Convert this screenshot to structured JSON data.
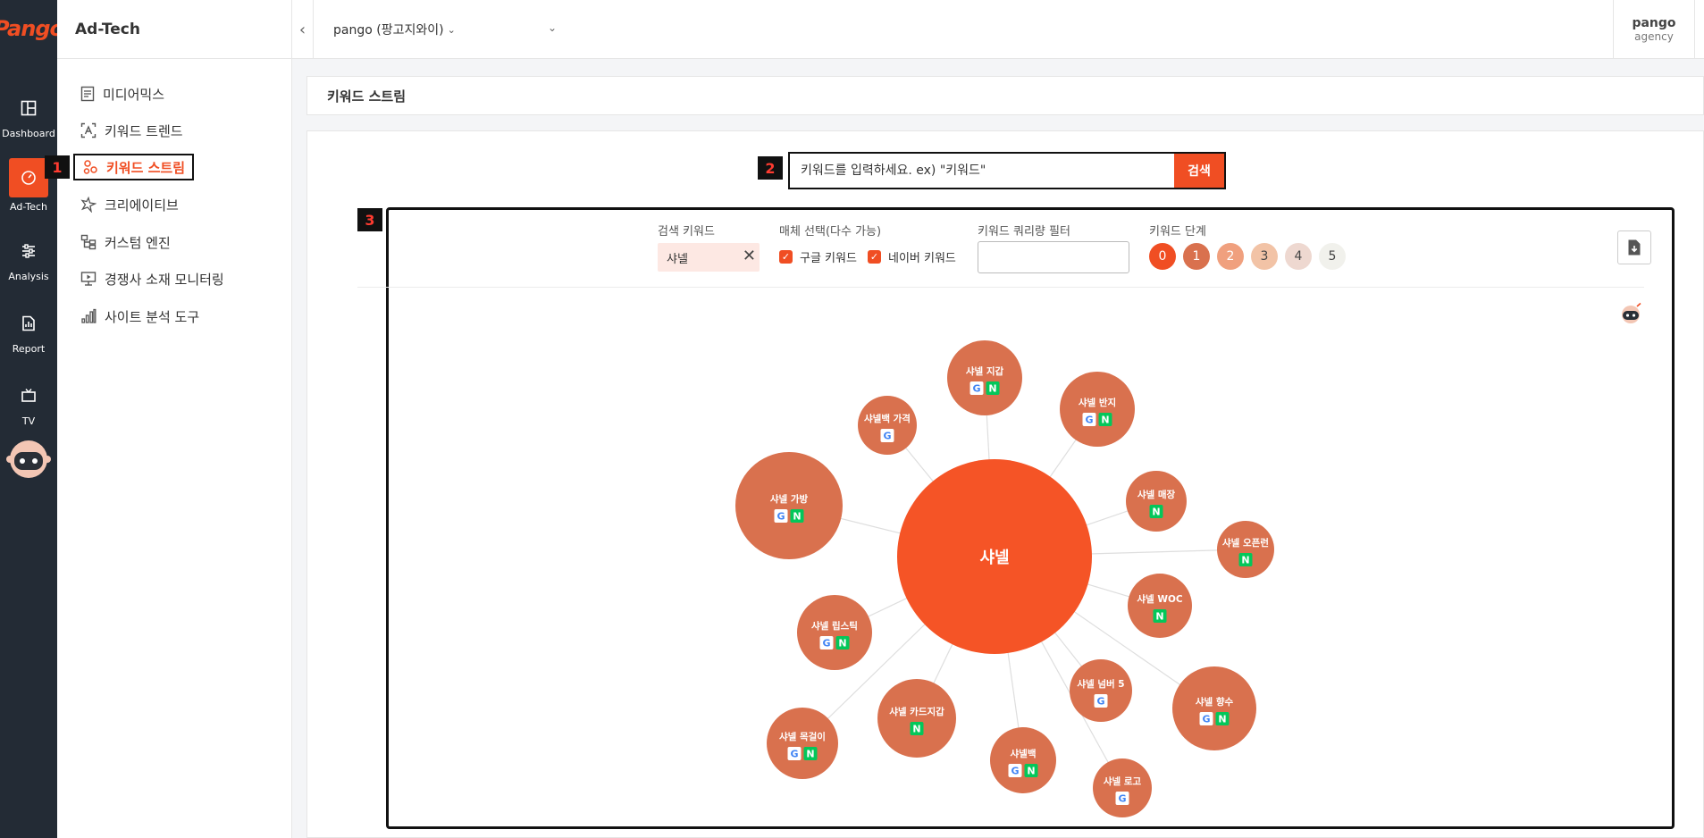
{
  "rail": {
    "logo": "Pango",
    "items": [
      {
        "label": "Dashboard",
        "icon": "dashboard-icon"
      },
      {
        "label": "Ad-Tech",
        "icon": "gauge-icon"
      },
      {
        "label": "Analysis",
        "icon": "sliders-icon"
      },
      {
        "label": "Report",
        "icon": "report-icon"
      },
      {
        "label": "TV",
        "icon": "tv-icon"
      }
    ]
  },
  "menu": {
    "title": "Ad-Tech",
    "items": [
      {
        "label": "미디어믹스",
        "icon": "document-icon"
      },
      {
        "label": "키워드 트렌드",
        "icon": "text-scan-icon"
      },
      {
        "label": "키워드 스트림",
        "icon": "stream-icon"
      },
      {
        "label": "크리에이티브",
        "icon": "sparkle-icon"
      },
      {
        "label": "커스텀 엔진",
        "icon": "tree-icon"
      },
      {
        "label": "경쟁사 소재 모니터링",
        "icon": "monitor-icon"
      },
      {
        "label": "사이트 분석 도구",
        "icon": "bar-chart-icon"
      }
    ]
  },
  "topbar": {
    "account": "pango (팡고지와이)",
    "user_name": "pango",
    "user_role": "agency"
  },
  "page_title": "키워드 스트림",
  "search": {
    "placeholder": "키워드를 입력하세요. ex) \"키워드\"",
    "button": "검색"
  },
  "filters": {
    "keyword_label": "검색 키워드",
    "keyword_value": "샤넬",
    "media_label": "매체 선택(다수 가능)",
    "media_options": [
      "구글 키워드",
      "네이버 키워드"
    ],
    "query_filter_label": "키워드 쿼리량 필터",
    "level_label": "키워드 단계",
    "levels": [
      "0",
      "1",
      "2",
      "3",
      "4",
      "5"
    ]
  },
  "annotations": [
    "1",
    "2",
    "3"
  ],
  "graph": {
    "center": "샤넬",
    "nodes": [
      {
        "label": "샤넬 지갑",
        "badges": [
          "G",
          "N"
        ]
      },
      {
        "label": "샤넬백 가격",
        "badges": [
          "G"
        ]
      },
      {
        "label": "샤넬 반지",
        "badges": [
          "G",
          "N"
        ]
      },
      {
        "label": "샤넬 가방",
        "badges": [
          "G",
          "N"
        ]
      },
      {
        "label": "샤넬 매장",
        "badges": [
          "N"
        ]
      },
      {
        "label": "샤넬 오픈런",
        "badges": [
          "N"
        ]
      },
      {
        "label": "샤넬 WOC",
        "badges": [
          "N"
        ]
      },
      {
        "label": "샤넬 립스틱",
        "badges": [
          "G",
          "N"
        ]
      },
      {
        "label": "샤넬 넘버 5",
        "badges": [
          "G"
        ]
      },
      {
        "label": "샤넬 향수",
        "badges": [
          "G",
          "N"
        ]
      },
      {
        "label": "샤넬 카드지갑",
        "badges": [
          "N"
        ]
      },
      {
        "label": "샤넬 목걸이",
        "badges": [
          "G",
          "N"
        ]
      },
      {
        "label": "샤넬백",
        "badges": [
          "G",
          "N"
        ]
      },
      {
        "label": "샤넬 로고",
        "badges": [
          "G"
        ]
      }
    ]
  }
}
